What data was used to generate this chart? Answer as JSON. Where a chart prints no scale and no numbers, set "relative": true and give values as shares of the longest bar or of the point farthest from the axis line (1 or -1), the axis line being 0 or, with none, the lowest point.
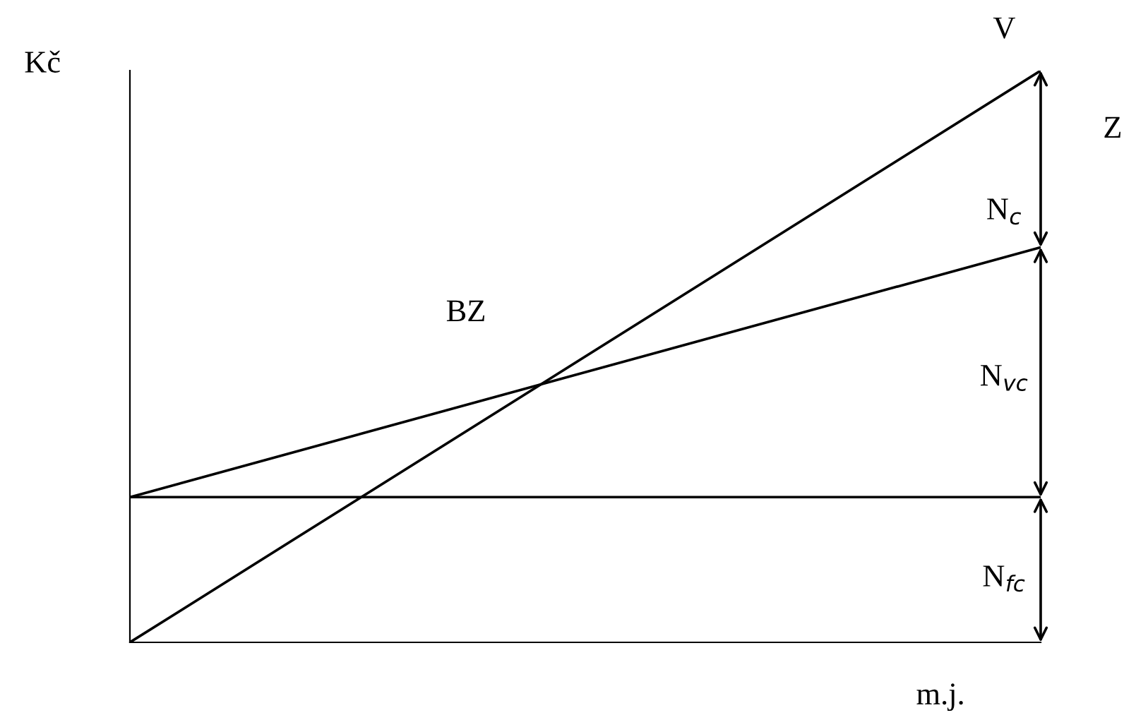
{
  "chart_data": {
    "type": "line",
    "relative": true,
    "categories": [
      null,
      null
    ],
    "series": [
      {
        "name": "V",
        "color": "#000000",
        "values": [
          0,
          1
        ]
      },
      {
        "color": "#000000",
        "values": [
          0.254,
          0.691
        ]
      },
      {
        "color": "#000000",
        "values": [
          0.254,
          0.254
        ]
      }
    ],
    "annotations": [
      "BZ",
      "Z",
      "N$_{c}$",
      "N$_{vc}$",
      "N$_{fc}$",
      "Kč",
      "m.j."
    ],
    "marker": "none",
    "line_style": "solid",
    "legend": false
  }
}
